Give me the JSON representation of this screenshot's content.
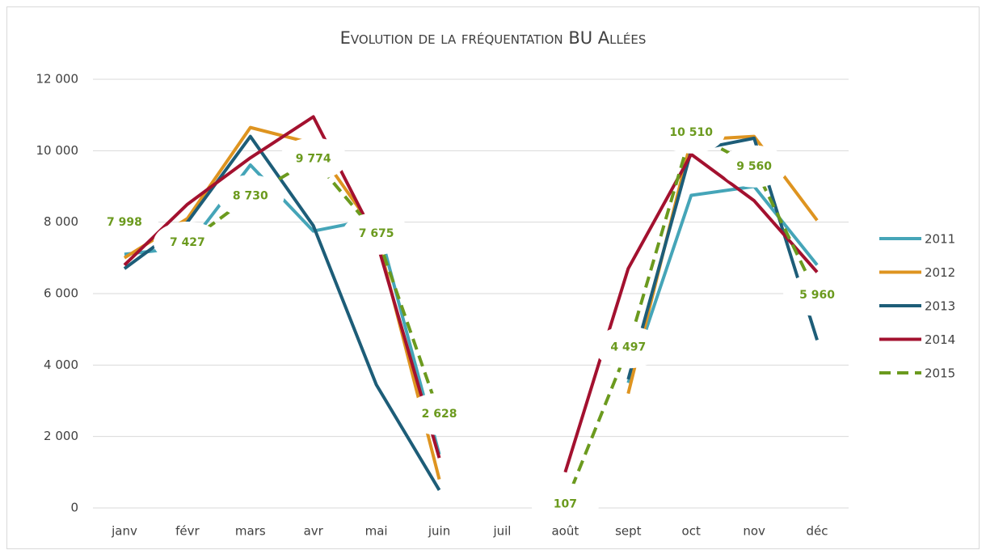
{
  "chart_data": {
    "type": "line",
    "title": "Evolution de la fréquentation BU Allées",
    "categories": [
      "janv",
      "févr",
      "mars",
      "avr",
      "mai",
      "juin",
      "juil",
      "août",
      "sept",
      "oct",
      "nov",
      "déc"
    ],
    "ylim": [
      0,
      12000
    ],
    "yticks": [
      {
        "value": 0,
        "label": "0"
      },
      {
        "value": 2000,
        "label": "2 000"
      },
      {
        "value": 4000,
        "label": "4 000"
      },
      {
        "value": 6000,
        "label": "6 000"
      },
      {
        "value": 8000,
        "label": "8 000"
      },
      {
        "value": 10000,
        "label": "10 000"
      },
      {
        "value": 12000,
        "label": "12 000"
      }
    ],
    "grid": true,
    "legend": "right",
    "series": [
      {
        "name": "2011",
        "color": "#45a5b8",
        "line_style": "solid",
        "values": [
          7100,
          7300,
          9600,
          7750,
          8100,
          1500,
          null,
          null,
          3500,
          8750,
          9000,
          6800
        ]
      },
      {
        "name": "2012",
        "color": "#de9420",
        "line_style": "solid",
        "values": [
          7000,
          8100,
          10650,
          10200,
          7700,
          800,
          null,
          null,
          3200,
          10300,
          10400,
          8050
        ]
      },
      {
        "name": "2013",
        "color": "#1d5d78",
        "line_style": "solid",
        "values": [
          6700,
          8000,
          10400,
          7900,
          3450,
          500,
          null,
          null,
          3600,
          10000,
          10350,
          4700
        ]
      },
      {
        "name": "2014",
        "color": "#a3112f",
        "line_style": "solid",
        "values": [
          6800,
          8500,
          9800,
          10950,
          7500,
          1400,
          null,
          1000,
          6700,
          9900,
          8600,
          6600
        ]
      },
      {
        "name": "2015",
        "color": "#6b9a1e",
        "line_style": "dashed",
        "values": [
          7998,
          7427,
          8730,
          9774,
          7675,
          2628,
          null,
          107,
          4497,
          10510,
          9560,
          5960
        ],
        "value_labels": [
          "7 998",
          "7 427",
          "8 730",
          "9 774",
          "7 675",
          "2 628",
          null,
          "107",
          "4 497",
          "10 510",
          "9 560",
          "5 960"
        ]
      }
    ]
  }
}
